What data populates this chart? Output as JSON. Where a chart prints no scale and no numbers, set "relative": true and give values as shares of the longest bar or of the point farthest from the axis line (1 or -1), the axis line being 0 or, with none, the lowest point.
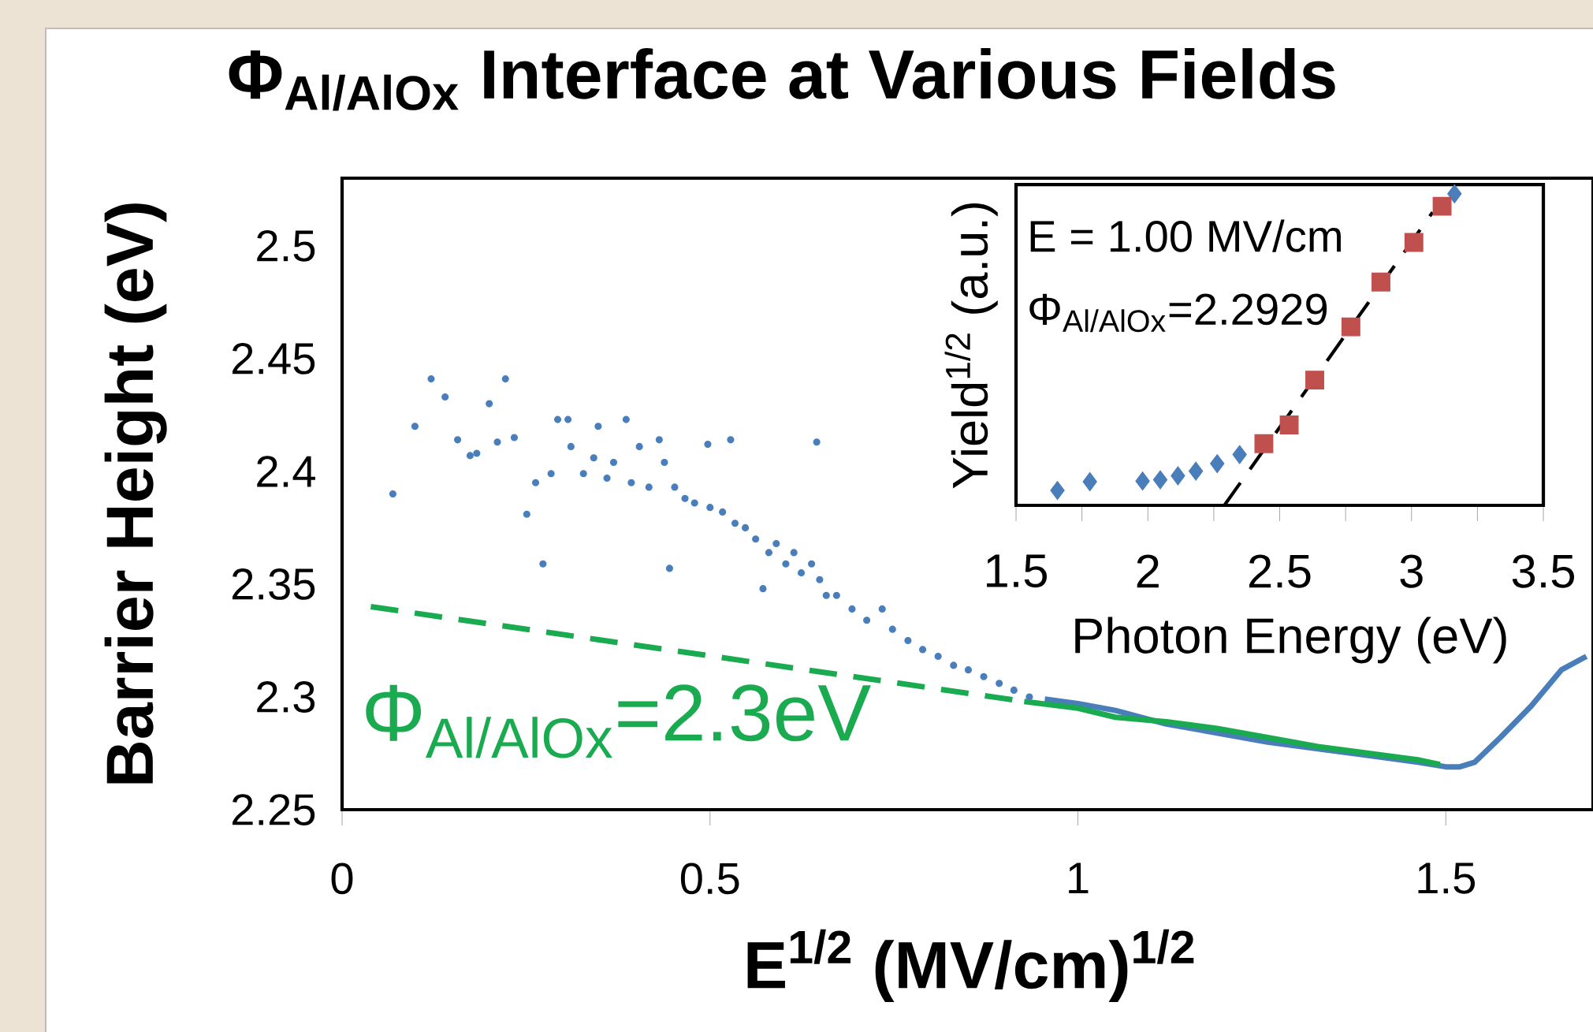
{
  "chart_data": [
    {
      "type": "scatter",
      "title": "Φ$_{Al/AlOx}$ Interface at Various Fields",
      "xlabel": "E$^{1/2}$  (MV/cm)$^{1/2}$",
      "ylabel": "Barrier Height (eV)",
      "xlim": [
        0,
        1.7
      ],
      "ylim": [
        2.25,
        2.53
      ],
      "xticks": [
        0,
        0.5,
        1,
        1.5
      ],
      "yticks": [
        2.25,
        2.3,
        2.35,
        2.4,
        2.45,
        2.5
      ],
      "grid": false,
      "annotations": [
        "Φ$_{Al/AlOx}$=2.3eV"
      ],
      "series": [
        {
          "color": "#4a7ebb",
          "marker": "circle",
          "x": [
            0.069,
            0.099,
            0.121,
            0.14,
            0.157,
            0.174,
            0.183,
            0.2,
            0.211,
            0.222,
            0.234,
            0.251,
            0.263,
            0.273,
            0.284,
            0.293,
            0.307,
            0.311,
            0.328,
            0.342,
            0.348,
            0.36,
            0.369,
            0.386,
            0.393,
            0.404,
            0.417,
            0.431,
            0.438,
            0.445,
            0.452,
            0.466,
            0.479,
            0.497,
            0.5,
            0.517,
            0.528,
            0.534,
            0.548,
            0.562,
            0.572,
            0.58,
            0.59,
            0.603,
            0.614,
            0.624,
            0.638,
            0.645,
            0.649,
            0.658,
            0.672,
            0.693,
            0.713,
            0.734,
            0.748,
            0.769,
            0.789,
            0.81,
            0.831,
            0.851,
            0.872,
            0.893,
            0.913,
            0.934
          ],
          "values": [
            2.39,
            2.42,
            2.441,
            2.433,
            2.414,
            2.407,
            2.408,
            2.43,
            2.413,
            2.441,
            2.415,
            2.381,
            2.395,
            2.359,
            2.399,
            2.423,
            2.423,
            2.411,
            2.399,
            2.406,
            2.42,
            2.397,
            2.404,
            2.423,
            2.395,
            2.411,
            2.393,
            2.414,
            2.404,
            2.357,
            2.393,
            2.388,
            2.386,
            2.412,
            2.384,
            2.382,
            2.414,
            2.377,
            2.375,
            2.37,
            2.348,
            2.364,
            2.368,
            2.359,
            2.364,
            2.355,
            2.359,
            2.413,
            2.352,
            2.345,
            2.345,
            2.339,
            2.334,
            2.339,
            2.33,
            2.325,
            2.321,
            2.318,
            2.314,
            2.312,
            2.309,
            2.306,
            2.303,
            2.3
          ]
        },
        {
          "type": "line",
          "color": "#4a7ebb",
          "x": [
            0.955,
            1.0,
            1.051,
            1.12,
            1.189,
            1.258,
            1.326,
            1.395,
            1.464,
            1.5,
            1.519,
            1.539,
            1.574,
            1.616,
            1.657,
            1.691
          ],
          "values": [
            2.299,
            2.297,
            2.294,
            2.288,
            2.284,
            2.28,
            2.277,
            2.274,
            2.271,
            2.269,
            2.269,
            2.271,
            2.282,
            2.296,
            2.312,
            2.318
          ]
        },
        {
          "type": "line",
          "color": "#1aaa50",
          "line_style": "dashed",
          "x": [
            0.039,
            0.927
          ],
          "values": [
            2.34,
            2.298
          ]
        },
        {
          "type": "line",
          "color": "#1aaa50",
          "x": [
            0.927,
            1.0,
            1.051,
            1.12,
            1.189,
            1.258,
            1.326,
            1.395,
            1.464,
            1.492
          ],
          "values": [
            2.298,
            2.295,
            2.291,
            2.289,
            2.286,
            2.282,
            2.278,
            2.275,
            2.272,
            2.27
          ]
        }
      ]
    },
    {
      "type": "scatter",
      "relative": true,
      "xlabel": "Photon Energy (eV)",
      "ylabel": "Yield$^{1/2}$ (a.u.)",
      "xlim": [
        1.5,
        3.5
      ],
      "xticks": [
        1.5,
        2,
        2.5,
        3,
        3.5
      ],
      "tick_labels": "x",
      "grid": false,
      "annotations": [
        "E = 1.00 MV/cm",
        "Φ$_{Al/AlOx}$=2.2929"
      ],
      "series": [
        {
          "color": "#4a7ebb",
          "marker": "diamond",
          "x": [
            1.657,
            1.78,
            1.98,
            2.047,
            2.114,
            2.182,
            2.263,
            2.348,
            3.163
          ],
          "values": [
            0.048,
            0.076,
            0.078,
            0.082,
            0.095,
            0.11,
            0.134,
            0.163,
            1.0
          ]
        },
        {
          "color": "#c0504d",
          "marker": "square",
          "x": [
            2.44,
            2.536,
            2.633,
            2.77,
            2.884,
            3.009,
            3.116
          ],
          "values": [
            0.198,
            0.258,
            0.402,
            0.573,
            0.717,
            0.844,
            0.96
          ]
        },
        {
          "type": "line",
          "color": "#000000",
          "line_style": "dashed",
          "x": [
            2.29,
            3.08
          ],
          "values": [
            0.0,
            0.941
          ]
        }
      ]
    }
  ]
}
